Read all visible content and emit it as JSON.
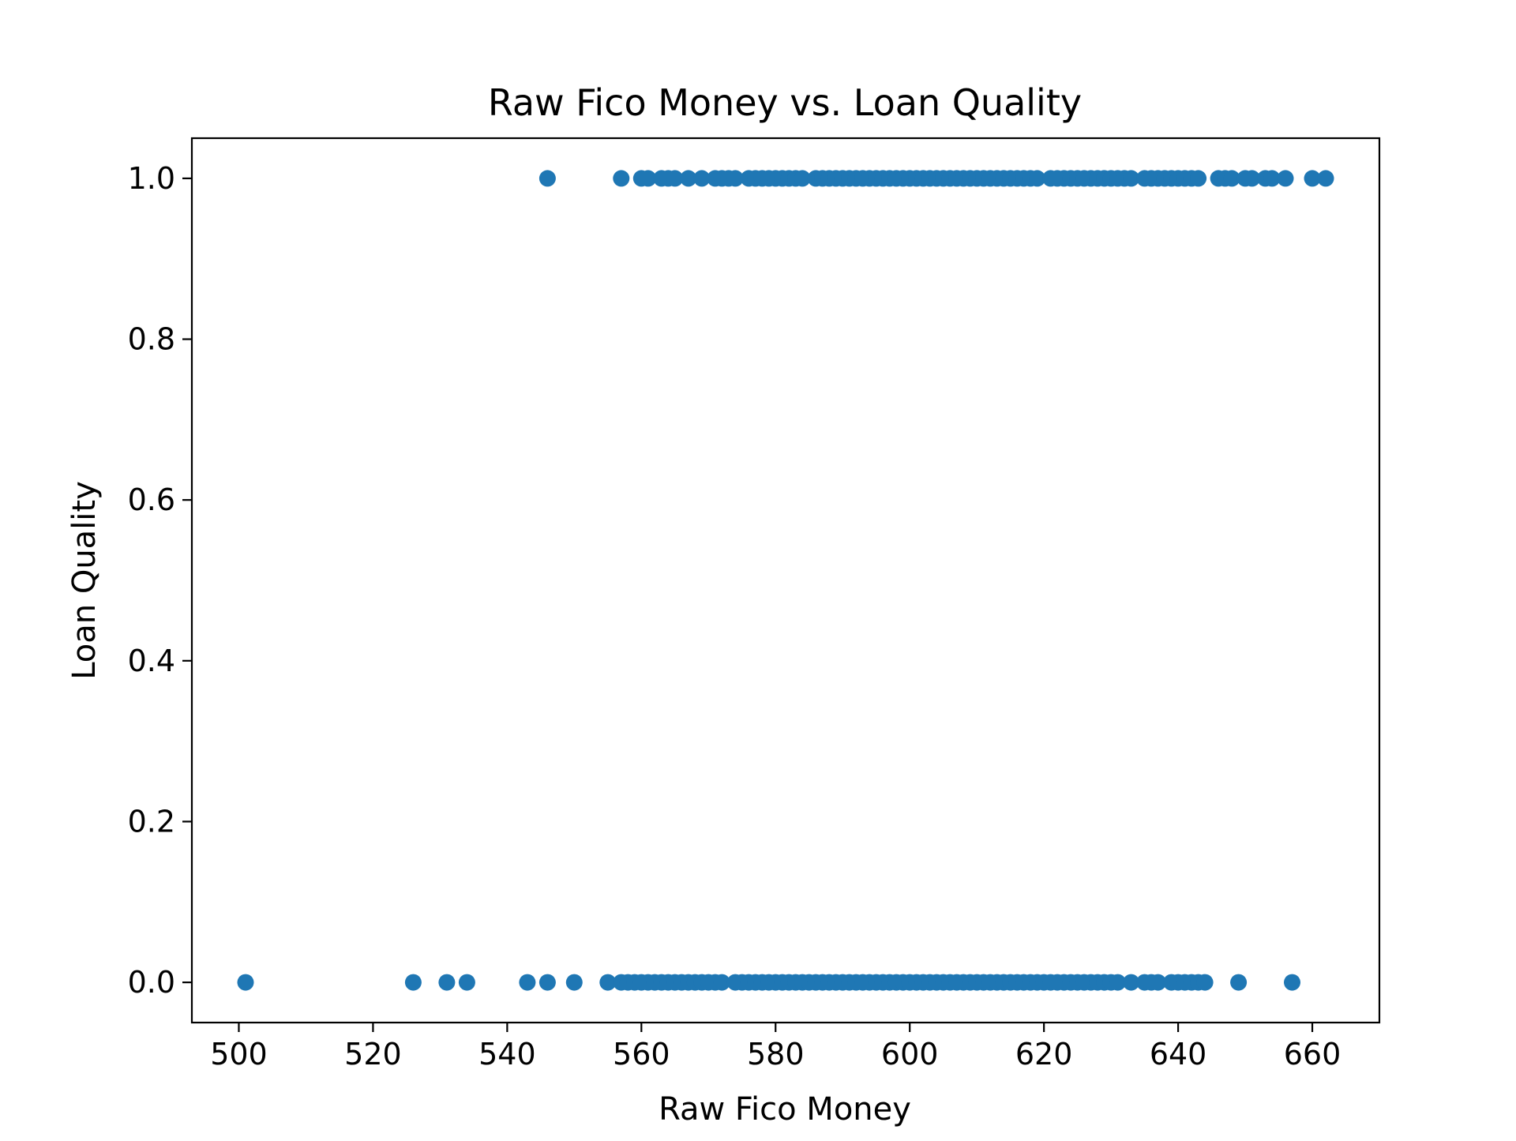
{
  "chart_data": {
    "type": "scatter",
    "title": "Raw Fico Money vs. Loan Quality",
    "xlabel": "Raw Fico Money",
    "ylabel": "Loan Quality",
    "xlim": [
      493,
      670
    ],
    "ylim": [
      -0.05,
      1.05
    ],
    "xticks": [
      500,
      520,
      540,
      560,
      580,
      600,
      620,
      640,
      660
    ],
    "xtick_labels": [
      "500",
      "520",
      "540",
      "560",
      "580",
      "600",
      "620",
      "640",
      "660"
    ],
    "yticks": [
      0.0,
      0.2,
      0.4,
      0.6,
      0.8,
      1.0
    ],
    "ytick_labels": [
      "0.0",
      "0.2",
      "0.4",
      "0.6",
      "0.8",
      "1.0"
    ],
    "grid": false,
    "color": "#1f77b4",
    "points_y1": [
      546,
      557,
      560,
      561,
      563,
      564,
      565,
      567,
      569,
      571,
      572,
      573,
      574,
      576,
      577,
      578,
      579,
      580,
      581,
      582,
      583,
      584,
      586,
      587,
      588,
      589,
      590,
      591,
      592,
      593,
      594,
      595,
      596,
      597,
      598,
      599,
      600,
      601,
      602,
      603,
      604,
      605,
      606,
      607,
      608,
      609,
      610,
      611,
      612,
      613,
      614,
      615,
      616,
      617,
      618,
      619,
      621,
      622,
      623,
      624,
      625,
      626,
      627,
      628,
      629,
      630,
      631,
      632,
      633,
      635,
      636,
      637,
      638,
      639,
      640,
      641,
      642,
      643,
      646,
      647,
      648,
      650,
      651,
      653,
      654,
      656,
      660,
      662
    ],
    "points_y0": [
      501,
      526,
      531,
      534,
      543,
      546,
      550,
      555,
      557,
      558,
      559,
      560,
      561,
      562,
      563,
      564,
      565,
      566,
      567,
      568,
      569,
      570,
      571,
      572,
      574,
      575,
      576,
      577,
      578,
      579,
      580,
      581,
      582,
      583,
      584,
      585,
      586,
      587,
      588,
      589,
      590,
      591,
      592,
      593,
      594,
      595,
      596,
      597,
      598,
      599,
      600,
      601,
      602,
      603,
      604,
      605,
      606,
      607,
      608,
      609,
      610,
      611,
      612,
      613,
      614,
      615,
      616,
      617,
      618,
      619,
      620,
      621,
      622,
      623,
      624,
      625,
      626,
      627,
      628,
      629,
      630,
      631,
      633,
      635,
      636,
      637,
      639,
      640,
      641,
      642,
      643,
      644,
      649,
      657
    ]
  }
}
